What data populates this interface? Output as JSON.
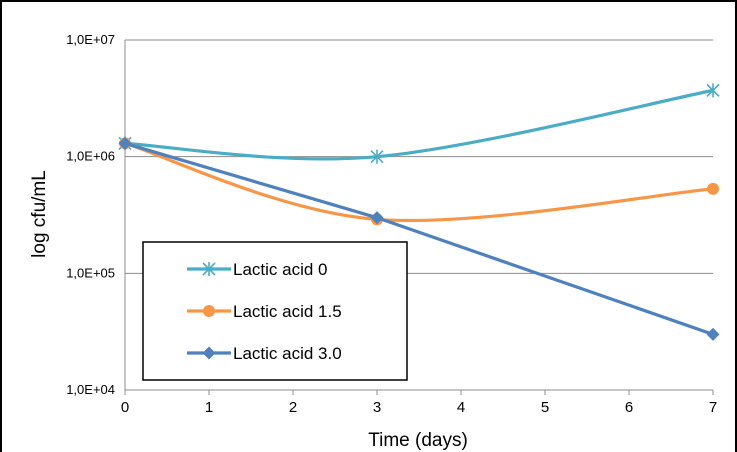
{
  "chart_data": {
    "type": "line",
    "xlabel": "Time (days)",
    "ylabel": "log cfu/mL",
    "x_ticks": [
      0,
      1,
      2,
      3,
      4,
      5,
      6,
      7
    ],
    "xlim": [
      0,
      7
    ],
    "yscale": "log",
    "ylim": [
      10000,
      10000000
    ],
    "y_ticks": [
      10000,
      100000,
      1000000,
      10000000
    ],
    "y_tick_labels": [
      "1,0E+04",
      "1,0E+05",
      "1,0E+06",
      "1,0E+07"
    ],
    "grid": "horizontal",
    "legend_position": "bottom-left",
    "series": [
      {
        "name": "Lactic acid 0",
        "color": "#4bacc6",
        "marker": "star",
        "x": [
          0,
          3,
          7
        ],
        "y": [
          1300000,
          1000000,
          3700000
        ]
      },
      {
        "name": "Lactic acid 1.5",
        "color": "#f79646",
        "marker": "circle",
        "x": [
          0,
          3,
          7
        ],
        "y": [
          1300000,
          290000,
          530000
        ]
      },
      {
        "name": "Lactic acid 3.0",
        "color": "#4f81bd",
        "marker": "diamond",
        "x": [
          0,
          3,
          7
        ],
        "y": [
          1300000,
          300000,
          30000
        ]
      }
    ]
  }
}
